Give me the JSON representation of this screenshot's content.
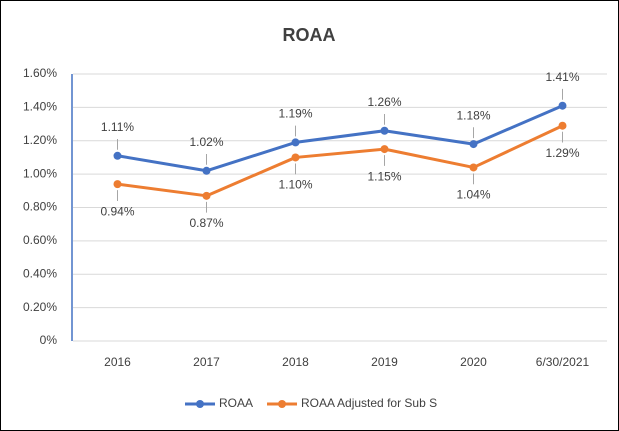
{
  "chart_data": {
    "type": "line",
    "title": "ROAA",
    "categories": [
      "2016",
      "2017",
      "2018",
      "2019",
      "2020",
      "6/30/2021"
    ],
    "series": [
      {
        "name": "ROAA",
        "color": "#4472c4",
        "values": [
          1.11,
          1.02,
          1.19,
          1.26,
          1.18,
          1.41
        ],
        "value_labels": [
          "1.11%",
          "1.02%",
          "1.19%",
          "1.26%",
          "1.18%",
          "1.41%"
        ]
      },
      {
        "name": "ROAA Adjusted for Sub S",
        "color": "#ed7d31",
        "values": [
          0.94,
          0.87,
          1.1,
          1.15,
          1.04,
          1.29
        ],
        "value_labels": [
          "0.94%",
          "0.87%",
          "1.10%",
          "1.15%",
          "1.04%",
          "1.29%"
        ]
      }
    ],
    "ylim": [
      0,
      1.6
    ],
    "yticks": [
      {
        "value": 0,
        "label": "0%"
      },
      {
        "value": 0.2,
        "label": "0.20%"
      },
      {
        "value": 0.4,
        "label": "0.40%"
      },
      {
        "value": 0.6,
        "label": "0.60%"
      },
      {
        "value": 0.8,
        "label": "0.80%"
      },
      {
        "value": 1.0,
        "label": "1.00%"
      },
      {
        "value": 1.2,
        "label": "1.20%"
      },
      {
        "value": 1.4,
        "label": "1.40%"
      },
      {
        "value": 1.6,
        "label": "1.60%"
      }
    ],
    "grid": true,
    "legend": "bottom"
  }
}
